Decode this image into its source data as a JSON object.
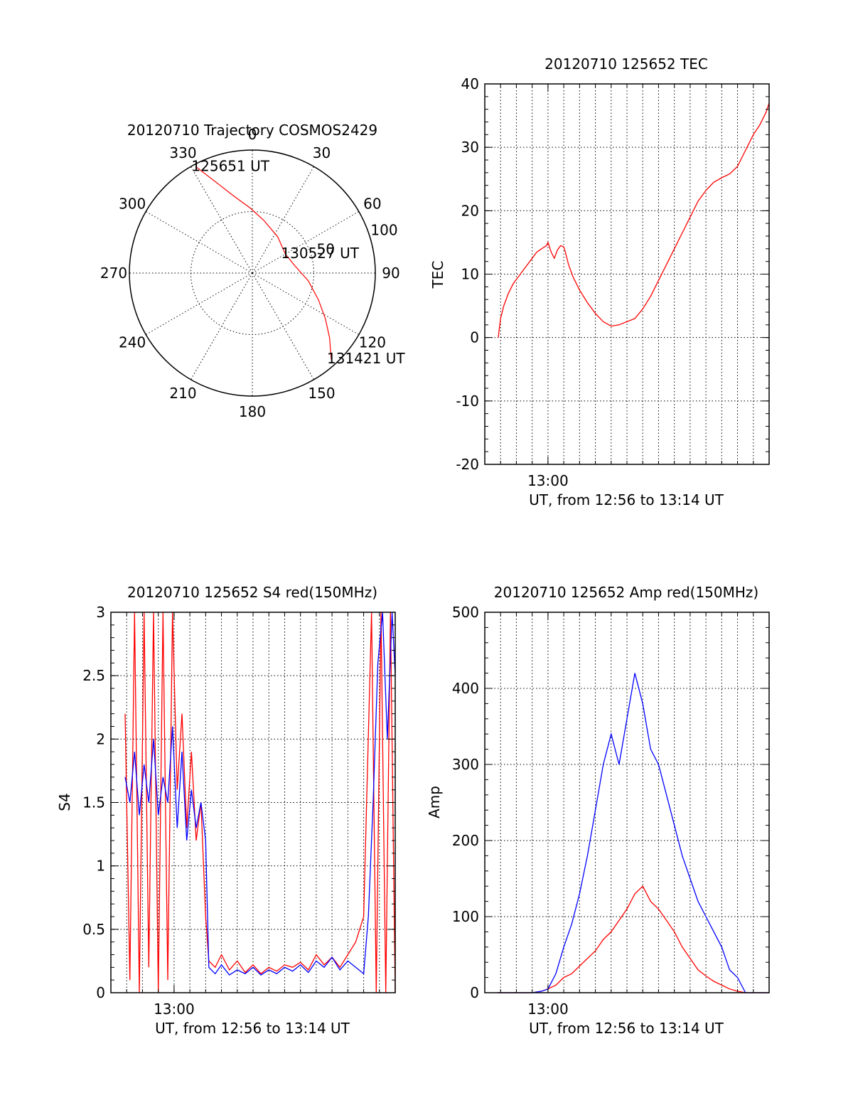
{
  "chart_data": [
    {
      "type": "polar",
      "title": "20120710 Trajectory COSMOS2429",
      "azimuth_labels": [
        "0",
        "30",
        "60",
        "90",
        "120",
        "150",
        "180",
        "210",
        "240",
        "270",
        "300",
        "330"
      ],
      "radial_tick_labels": [
        "50",
        "100"
      ],
      "radial_range": [
        0,
        100
      ],
      "grid": true,
      "series": [
        {
          "color": "#ff0000",
          "points": [
            {
              "az": 332,
              "r": 98
            },
            {
              "az": 338,
              "r": 80
            },
            {
              "az": 346,
              "r": 65
            },
            {
              "az": 358,
              "r": 53
            },
            {
              "az": 12,
              "r": 44
            },
            {
              "az": 35,
              "r": 36
            },
            {
              "az": 60,
              "r": 31
            },
            {
              "az": 80,
              "r": 35
            },
            {
              "az": 98,
              "r": 46
            },
            {
              "az": 112,
              "r": 58
            },
            {
              "az": 122,
              "r": 70
            },
            {
              "az": 130,
              "r": 82
            },
            {
              "az": 135,
              "r": 90
            },
            {
              "az": 137.5,
              "r": 95
            }
          ]
        }
      ],
      "annotations": [
        {
          "text": "125651 UT",
          "az": 332,
          "r": 98
        },
        {
          "text": "130527 UT",
          "az": 60,
          "r": 31
        },
        {
          "text": "131421 UT",
          "az": 137.5,
          "r": 95
        }
      ]
    },
    {
      "type": "line",
      "title": "20120710 125652 TEC",
      "xlabel": "UT, from 12:56 to 13:14 UT",
      "ylabel": "TEC",
      "xlim": [
        0,
        18
      ],
      "ylim": [
        -20,
        40
      ],
      "x_ticks": [
        {
          "value": 4,
          "label": "13:00"
        }
      ],
      "y_ticks": [
        -20,
        -10,
        0,
        10,
        20,
        30,
        40
      ],
      "grid": true,
      "series": [
        {
          "color": "#ff0000",
          "x": [
            0.85,
            1.0,
            1.2,
            1.5,
            1.8,
            2.1,
            2.4,
            2.7,
            3.0,
            3.3,
            3.6,
            3.9,
            4.0,
            4.2,
            4.4,
            4.6,
            4.8,
            5.0,
            5.1,
            5.3,
            5.6,
            6.0,
            6.5,
            7.0,
            7.5,
            8.0,
            8.5,
            9.0,
            9.5,
            10.0,
            10.5,
            11.0,
            11.5,
            12.0,
            12.5,
            13.0,
            13.5,
            14.0,
            14.5,
            15.0,
            15.5,
            16.0,
            16.3,
            16.6,
            17.0,
            17.4,
            17.8,
            18.0
          ],
          "y": [
            0,
            3,
            5,
            7,
            8.5,
            9.5,
            10.5,
            11.5,
            12.5,
            13.5,
            14,
            14.5,
            15,
            13.5,
            12.5,
            13.8,
            14.5,
            14.3,
            13.5,
            11.5,
            9.5,
            7.5,
            5.5,
            3.8,
            2.5,
            1.8,
            2.0,
            2.5,
            3.0,
            4.5,
            6.5,
            9.0,
            11.5,
            14.0,
            16.5,
            19.0,
            21.5,
            23.2,
            24.5,
            25.2,
            25.8,
            27.0,
            28.5,
            30.0,
            32.0,
            33.5,
            35.5,
            37.0
          ]
        }
      ]
    },
    {
      "type": "line",
      "title": "20120710 125652 S4 red(150MHz)",
      "xlabel": "UT, from 12:56 to 13:14 UT",
      "ylabel": "S4",
      "xlim": [
        0,
        18
      ],
      "ylim": [
        0,
        3
      ],
      "x_ticks": [
        {
          "value": 4,
          "label": "13:00"
        }
      ],
      "y_ticks": [
        0,
        0.5,
        1,
        1.5,
        2,
        2.5,
        3
      ],
      "grid": true,
      "series": [
        {
          "color": "#ff0000",
          "x": [
            0.9,
            1.2,
            1.5,
            1.8,
            2.1,
            2.4,
            2.7,
            3.0,
            3.3,
            3.6,
            3.9,
            4.2,
            4.5,
            4.8,
            5.1,
            5.4,
            5.7,
            6.0,
            6.2,
            6.6,
            7.0,
            7.5,
            8.0,
            8.5,
            9.0,
            9.5,
            10.0,
            10.5,
            11.0,
            11.5,
            12.0,
            12.5,
            13.0,
            13.5,
            14.0,
            14.5,
            15.0,
            15.5,
            16.0,
            16.5,
            16.8,
            17.1,
            17.4,
            17.7,
            18.0
          ],
          "y": [
            2.2,
            0.1,
            3.0,
            0.0,
            3.0,
            0.2,
            3.0,
            0.0,
            3.0,
            0.1,
            3.0,
            1.6,
            2.2,
            1.3,
            1.9,
            1.2,
            1.5,
            0.6,
            0.25,
            0.2,
            0.3,
            0.18,
            0.25,
            0.16,
            0.22,
            0.15,
            0.2,
            0.17,
            0.22,
            0.2,
            0.24,
            0.18,
            0.3,
            0.22,
            0.28,
            0.2,
            0.3,
            0.4,
            0.6,
            3.0,
            0.0,
            3.0,
            0.0,
            3.0,
            0.0
          ]
        },
        {
          "color": "#0000ff",
          "x": [
            0.9,
            1.2,
            1.5,
            1.8,
            2.1,
            2.4,
            2.7,
            3.0,
            3.3,
            3.6,
            3.9,
            4.2,
            4.5,
            4.8,
            5.1,
            5.4,
            5.7,
            6.0,
            6.2,
            6.6,
            7.0,
            7.5,
            8.0,
            8.5,
            9.0,
            9.5,
            10.0,
            10.5,
            11.0,
            11.5,
            12.0,
            12.5,
            13.0,
            13.5,
            14.0,
            14.5,
            15.0,
            15.5,
            16.0,
            16.3,
            16.6,
            16.9,
            17.2,
            17.5,
            17.8,
            18.0
          ],
          "y": [
            1.7,
            1.5,
            1.9,
            1.4,
            1.8,
            1.5,
            2.0,
            1.4,
            1.7,
            1.5,
            2.1,
            1.3,
            1.9,
            1.2,
            1.6,
            1.3,
            1.5,
            1.2,
            0.2,
            0.15,
            0.22,
            0.14,
            0.18,
            0.15,
            0.2,
            0.14,
            0.18,
            0.15,
            0.2,
            0.17,
            0.22,
            0.16,
            0.25,
            0.2,
            0.28,
            0.18,
            0.25,
            0.2,
            0.15,
            0.6,
            1.5,
            2.6,
            3.0,
            2.0,
            3.0,
            2.5
          ]
        }
      ]
    },
    {
      "type": "line",
      "title": "20120710 125652 Amp red(150MHz)",
      "xlabel": "UT, from 12:56 to 13:14 UT",
      "ylabel": "Amp",
      "xlim": [
        0,
        18
      ],
      "ylim": [
        0,
        500
      ],
      "x_ticks": [
        {
          "value": 4,
          "label": "13:00"
        }
      ],
      "y_ticks": [
        0,
        100,
        200,
        300,
        400,
        500
      ],
      "grid": true,
      "series": [
        {
          "color": "#ff0000",
          "x": [
            0.8,
            2.0,
            3.0,
            3.6,
            4.0,
            4.5,
            5.0,
            5.5,
            6.0,
            6.5,
            7.0,
            7.5,
            8.0,
            8.5,
            9.0,
            9.5,
            10.0,
            10.5,
            11.0,
            11.5,
            12.0,
            12.5,
            13.0,
            13.5,
            14.0,
            14.5,
            15.0,
            15.5,
            16.0,
            16.5,
            17.0,
            18.0
          ],
          "y": [
            0,
            0,
            0,
            2,
            5,
            10,
            20,
            25,
            35,
            45,
            55,
            70,
            80,
            95,
            110,
            130,
            140,
            120,
            110,
            95,
            80,
            60,
            45,
            30,
            22,
            15,
            10,
            5,
            2,
            0,
            0,
            0
          ]
        },
        {
          "color": "#0000ff",
          "x": [
            0.8,
            2.0,
            3.0,
            3.6,
            4.0,
            4.5,
            5.0,
            5.5,
            6.0,
            6.5,
            7.0,
            7.5,
            8.0,
            8.5,
            9.0,
            9.5,
            10.0,
            10.5,
            11.0,
            11.5,
            12.0,
            12.5,
            13.0,
            13.5,
            14.0,
            14.5,
            15.0,
            15.5,
            16.0,
            16.5,
            17.0,
            18.0
          ],
          "y": [
            0,
            0,
            0,
            2,
            5,
            25,
            60,
            90,
            130,
            180,
            240,
            300,
            340,
            300,
            360,
            420,
            380,
            320,
            300,
            260,
            220,
            180,
            150,
            120,
            100,
            80,
            60,
            30,
            20,
            0,
            0,
            0
          ]
        }
      ]
    }
  ]
}
